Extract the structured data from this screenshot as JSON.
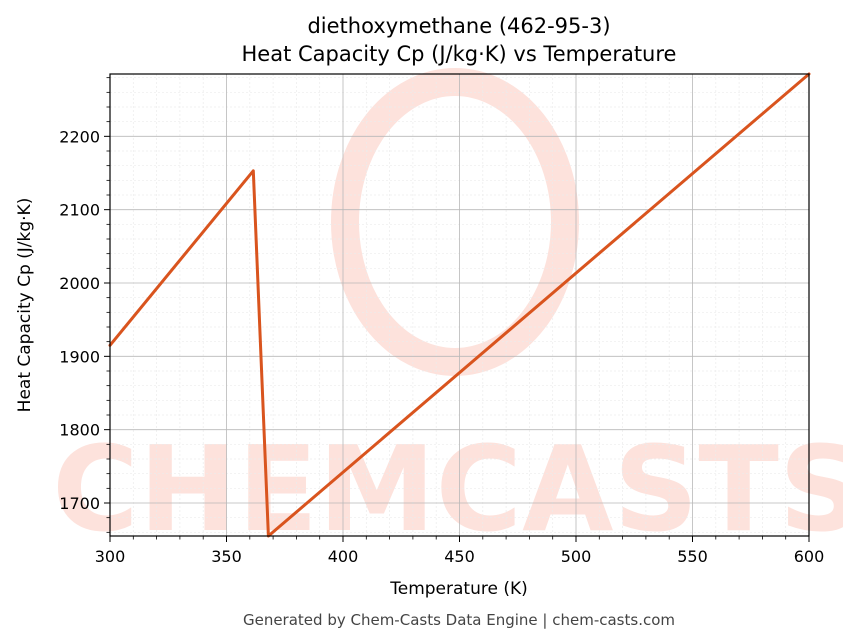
{
  "chart_data": {
    "type": "line",
    "title": "diethoxymethane (462-95-3)",
    "subtitle": "Heat Capacity Cp (J/kg·K) vs Temperature",
    "xlabel": "Temperature (K)",
    "ylabel": "Heat Capacity Cp (J/kg·K)",
    "xlim": [
      300,
      600
    ],
    "ylim": [
      1655,
      2285
    ],
    "xticks": [
      300,
      350,
      400,
      450,
      500,
      550,
      600
    ],
    "yticks": [
      1700,
      1800,
      1900,
      2000,
      2100,
      2200
    ],
    "grid": true,
    "series": [
      {
        "color": "#d9541e",
        "x": [
          300,
          361.5,
          368,
          600
        ],
        "y": [
          1915,
          2153,
          1655,
          2285
        ]
      }
    ]
  },
  "watermark": {
    "text": "CHEMCASTS",
    "color": "#fde2dc"
  },
  "footer": {
    "text": "Generated by Chem-Casts Data Engine | chem-casts.com"
  }
}
